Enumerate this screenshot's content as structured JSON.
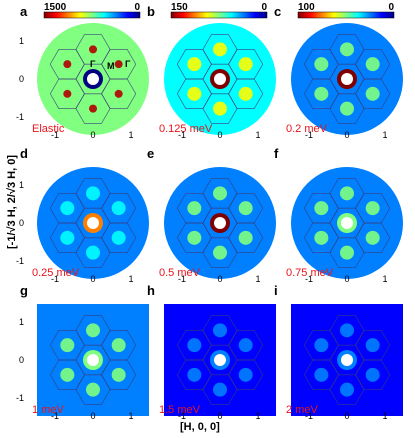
{
  "figure": {
    "xlabel": "[H, 0, 0]",
    "ylabel": "[-1/√3 H, 2/√3 H, 0]",
    "colormap": [
      "#000080",
      "#0000ff",
      "#0080ff",
      "#00ffff",
      "#80ff80",
      "#ffff00",
      "#ff8000",
      "#ff0000",
      "#800000"
    ],
    "panels": [
      {
        "letter": "a",
        "energy": "Elastic",
        "colorbar": {
          "max": "1500",
          "min": "0"
        },
        "shape": "circle",
        "center_level": 0.0,
        "ring_level": 0.4,
        "ring_intensity": 1.0,
        "bg_level": 0.45,
        "y_ticks": [
          "1",
          "0",
          "-1"
        ],
        "x_ticks": [
          "-1",
          "0",
          "1"
        ],
        "symmetry_labels": [
          "Γ",
          "M",
          "Γ"
        ]
      },
      {
        "letter": "b",
        "energy": "0.125 meV",
        "colorbar": {
          "max": "150",
          "min": "0"
        },
        "shape": "circle",
        "center_level": 1.0,
        "ring_level": 0.5,
        "ring_intensity": 0.85,
        "bg_level": 0.38,
        "y_ticks": [],
        "x_ticks": [
          "-1",
          "0",
          "1"
        ],
        "symmetry_labels": []
      },
      {
        "letter": "c",
        "energy": "0.2 meV",
        "colorbar": {
          "max": "100",
          "min": "0"
        },
        "shape": "circle",
        "center_level": 0.95,
        "ring_level": 0.45,
        "ring_intensity": 0.5,
        "bg_level": 0.28,
        "y_ticks": [],
        "x_ticks": [
          "-1",
          "0",
          "1"
        ],
        "symmetry_labels": []
      },
      {
        "letter": "d",
        "energy": "0.25 meV",
        "colorbar": null,
        "shape": "circle",
        "center_level": 0.7,
        "ring_level": 0.3,
        "ring_intensity": 0.35,
        "bg_level": 0.22,
        "y_ticks": [
          "1",
          "0",
          "-1"
        ],
        "x_ticks": [
          "-1",
          "0",
          "1"
        ],
        "symmetry_labels": []
      },
      {
        "letter": "e",
        "energy": "0.5 meV",
        "colorbar": null,
        "shape": "circle",
        "center_level": 1.0,
        "ring_level": 0.35,
        "ring_intensity": 0.45,
        "bg_level": 0.25,
        "y_ticks": [],
        "x_ticks": [
          "-1",
          "0",
          "1"
        ],
        "symmetry_labels": []
      },
      {
        "letter": "f",
        "energy": "0.75 meV",
        "colorbar": null,
        "shape": "circle",
        "center_level": 0.45,
        "ring_level": 0.45,
        "ring_intensity": 0.55,
        "bg_level": 0.2,
        "y_ticks": [],
        "x_ticks": [
          "-1",
          "0",
          "1"
        ],
        "symmetry_labels": []
      },
      {
        "letter": "g",
        "energy": "1 meV",
        "colorbar": null,
        "shape": "square",
        "center_level": 0.45,
        "ring_level": 0.35,
        "ring_intensity": 0.5,
        "bg_level": 0.2,
        "y_ticks": [
          "1",
          "0",
          "-1"
        ],
        "x_ticks": [
          "-1",
          "0",
          "1"
        ],
        "symmetry_labels": []
      },
      {
        "letter": "h",
        "energy": "1.5 meV",
        "colorbar": null,
        "shape": "square",
        "center_level": 0.2,
        "ring_level": 0.22,
        "ring_intensity": 0.3,
        "bg_level": 0.14,
        "y_ticks": [],
        "x_ticks": [
          "-1",
          "0",
          "1"
        ],
        "symmetry_labels": []
      },
      {
        "letter": "i",
        "energy": "2 meV",
        "colorbar": null,
        "shape": "square",
        "center_level": 0.2,
        "ring_level": 0.2,
        "ring_intensity": 0.25,
        "bg_level": 0.13,
        "y_ticks": [],
        "x_ticks": [
          "-1",
          "0",
          "1"
        ],
        "symmetry_labels": []
      }
    ]
  }
}
